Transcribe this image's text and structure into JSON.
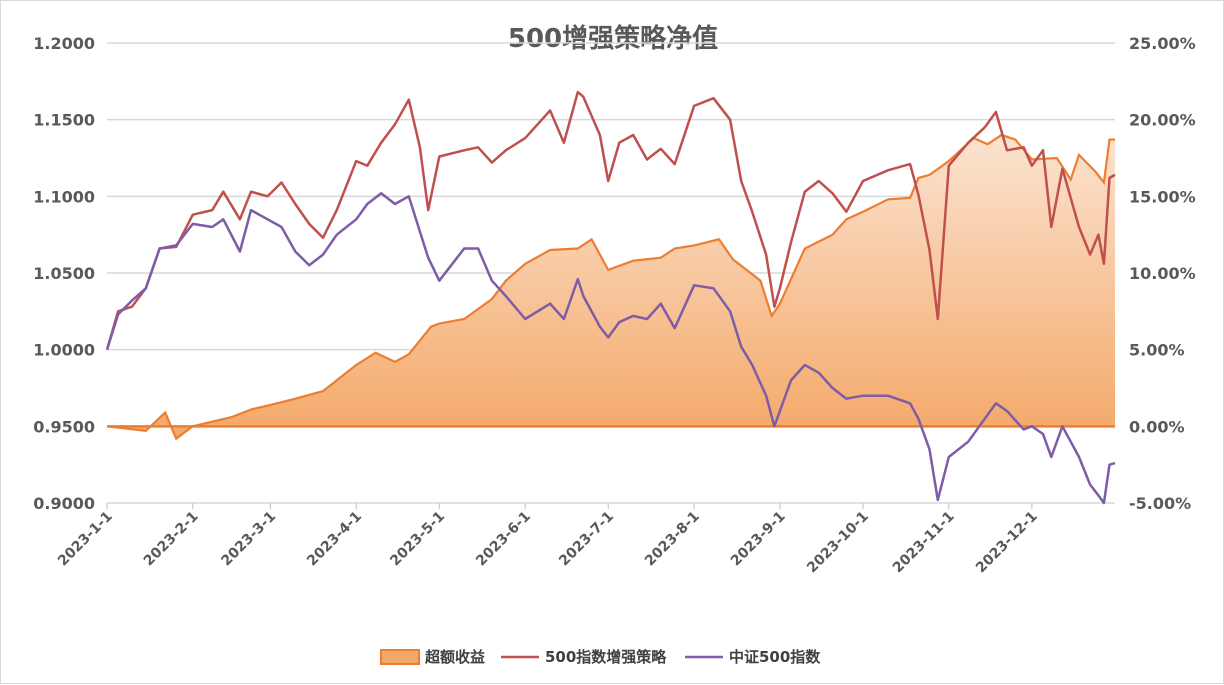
{
  "chart_data": {
    "type": "line",
    "title": "500增强策略净值",
    "x_labels": [
      "2023-1-1",
      "2023-2-1",
      "2023-3-1",
      "2023-4-1",
      "2023-5-1",
      "2023-6-1",
      "2023-7-1",
      "2023-8-1",
      "2023-9-1",
      "2023-10-1",
      "2023-11-1",
      "2023-12-1"
    ],
    "left_axis": {
      "ticks": [
        "1.2000",
        "1.1500",
        "1.1000",
        "1.0500",
        "1.0000",
        "0.9500",
        "0.9000"
      ],
      "ylim": [
        0.9,
        1.2
      ]
    },
    "right_axis": {
      "ticks": [
        "25.00%",
        "20.00%",
        "15.00%",
        "10.00%",
        "5.00%",
        "0.00%",
        "-5.00%"
      ],
      "ylim": [
        -5,
        25
      ]
    },
    "grid": true,
    "legend_position": "bottom",
    "series": [
      {
        "name": "超额收益",
        "type": "area",
        "axis": "right",
        "color": "#ED7D31",
        "fill_top": "#FBE3D0",
        "fill_bottom": "#F4A868",
        "points": [
          [
            "2023-1-1",
            0.0
          ],
          [
            "2023-1-15",
            -0.3
          ],
          [
            "2023-1-22",
            0.9
          ],
          [
            "2023-1-26",
            -0.8
          ],
          [
            "2023-2-1",
            0.0
          ],
          [
            "2023-2-8",
            0.3
          ],
          [
            "2023-2-15",
            0.6
          ],
          [
            "2023-2-22",
            1.1
          ],
          [
            "2023-3-1",
            1.4
          ],
          [
            "2023-3-10",
            1.8
          ],
          [
            "2023-3-20",
            2.3
          ],
          [
            "2023-3-25",
            3.0
          ],
          [
            "2023-4-1",
            4.0
          ],
          [
            "2023-4-8",
            4.8
          ],
          [
            "2023-4-15",
            4.2
          ],
          [
            "2023-4-20",
            4.7
          ],
          [
            "2023-4-28",
            6.5
          ],
          [
            "2023-5-1",
            6.7
          ],
          [
            "2023-5-10",
            7.0
          ],
          [
            "2023-5-20",
            8.3
          ],
          [
            "2023-5-25",
            9.5
          ],
          [
            "2023-6-1",
            10.6
          ],
          [
            "2023-6-10",
            11.5
          ],
          [
            "2023-6-20",
            11.6
          ],
          [
            "2023-6-25",
            12.2
          ],
          [
            "2023-7-1",
            10.2
          ],
          [
            "2023-7-10",
            10.8
          ],
          [
            "2023-7-20",
            11.0
          ],
          [
            "2023-7-25",
            11.6
          ],
          [
            "2023-8-1",
            11.8
          ],
          [
            "2023-8-10",
            12.2
          ],
          [
            "2023-8-15",
            10.9
          ],
          [
            "2023-8-25",
            9.5
          ],
          [
            "2023-8-29",
            7.2
          ],
          [
            "2023-9-1",
            8.0
          ],
          [
            "2023-9-10",
            11.6
          ],
          [
            "2023-9-20",
            12.5
          ],
          [
            "2023-9-25",
            13.5
          ],
          [
            "2023-10-1",
            14.0
          ],
          [
            "2023-10-10",
            14.8
          ],
          [
            "2023-10-18",
            14.9
          ],
          [
            "2023-10-21",
            16.2
          ],
          [
            "2023-10-25",
            16.4
          ],
          [
            "2023-11-1",
            17.3
          ],
          [
            "2023-11-10",
            18.8
          ],
          [
            "2023-11-15",
            18.4
          ],
          [
            "2023-11-20",
            19.0
          ],
          [
            "2023-11-25",
            18.7
          ],
          [
            "2023-12-1",
            17.4
          ],
          [
            "2023-12-10",
            17.5
          ],
          [
            "2023-12-15",
            16.1
          ],
          [
            "2023-12-18",
            17.7
          ],
          [
            "2023-12-24",
            16.6
          ],
          [
            "2023-12-27",
            15.9
          ],
          [
            "2023-12-29",
            18.7
          ],
          [
            "2023-12-31",
            18.7
          ]
        ]
      },
      {
        "name": "500指数增强策略",
        "type": "line",
        "axis": "left",
        "color": "#C0504D",
        "points": [
          [
            "2023-1-1",
            1.0
          ],
          [
            "2023-1-5",
            1.025
          ],
          [
            "2023-1-10",
            1.028
          ],
          [
            "2023-1-15",
            1.04
          ],
          [
            "2023-1-20",
            1.066
          ],
          [
            "2023-1-26",
            1.067
          ],
          [
            "2023-2-1",
            1.088
          ],
          [
            "2023-2-8",
            1.091
          ],
          [
            "2023-2-12",
            1.103
          ],
          [
            "2023-2-18",
            1.085
          ],
          [
            "2023-2-22",
            1.103
          ],
          [
            "2023-2-28",
            1.1
          ],
          [
            "2023-3-5",
            1.109
          ],
          [
            "2023-3-10",
            1.095
          ],
          [
            "2023-3-15",
            1.082
          ],
          [
            "2023-3-20",
            1.073
          ],
          [
            "2023-3-25",
            1.091
          ],
          [
            "2023-4-1",
            1.123
          ],
          [
            "2023-4-5",
            1.12
          ],
          [
            "2023-4-10",
            1.135
          ],
          [
            "2023-4-15",
            1.147
          ],
          [
            "2023-4-20",
            1.163
          ],
          [
            "2023-4-24",
            1.132
          ],
          [
            "2023-4-27",
            1.091
          ],
          [
            "2023-5-1",
            1.126
          ],
          [
            "2023-5-10",
            1.13
          ],
          [
            "2023-5-15",
            1.132
          ],
          [
            "2023-5-20",
            1.122
          ],
          [
            "2023-5-25",
            1.13
          ],
          [
            "2023-6-1",
            1.138
          ],
          [
            "2023-6-10",
            1.156
          ],
          [
            "2023-6-15",
            1.135
          ],
          [
            "2023-6-20",
            1.168
          ],
          [
            "2023-6-22",
            1.165
          ],
          [
            "2023-6-28",
            1.14
          ],
          [
            "2023-7-1",
            1.11
          ],
          [
            "2023-7-5",
            1.135
          ],
          [
            "2023-7-10",
            1.14
          ],
          [
            "2023-7-15",
            1.124
          ],
          [
            "2023-7-20",
            1.131
          ],
          [
            "2023-7-25",
            1.121
          ],
          [
            "2023-8-1",
            1.159
          ],
          [
            "2023-8-8",
            1.164
          ],
          [
            "2023-8-14",
            1.15
          ],
          [
            "2023-8-18",
            1.11
          ],
          [
            "2023-8-22",
            1.09
          ],
          [
            "2023-8-27",
            1.062
          ],
          [
            "2023-8-30",
            1.028
          ],
          [
            "2023-9-1",
            1.04
          ],
          [
            "2023-9-5",
            1.07
          ],
          [
            "2023-9-10",
            1.103
          ],
          [
            "2023-9-15",
            1.11
          ],
          [
            "2023-9-20",
            1.102
          ],
          [
            "2023-9-25",
            1.09
          ],
          [
            "2023-10-1",
            1.11
          ],
          [
            "2023-10-10",
            1.117
          ],
          [
            "2023-10-18",
            1.121
          ],
          [
            "2023-10-21",
            1.101
          ],
          [
            "2023-10-25",
            1.065
          ],
          [
            "2023-10-28",
            1.02
          ],
          [
            "2023-11-1",
            1.12
          ],
          [
            "2023-11-8",
            1.135
          ],
          [
            "2023-11-14",
            1.145
          ],
          [
            "2023-11-18",
            1.155
          ],
          [
            "2023-11-22",
            1.13
          ],
          [
            "2023-11-28",
            1.132
          ],
          [
            "2023-12-1",
            1.12
          ],
          [
            "2023-12-5",
            1.13
          ],
          [
            "2023-12-8",
            1.08
          ],
          [
            "2023-12-12",
            1.118
          ],
          [
            "2023-12-18",
            1.08
          ],
          [
            "2023-12-22",
            1.062
          ],
          [
            "2023-12-25",
            1.075
          ],
          [
            "2023-12-27",
            1.056
          ],
          [
            "2023-12-29",
            1.112
          ],
          [
            "2023-12-31",
            1.114
          ]
        ]
      },
      {
        "name": "中证500指数",
        "type": "line",
        "axis": "left",
        "color": "#7E5CA6",
        "points": [
          [
            "2023-1-1",
            1.0
          ],
          [
            "2023-1-5",
            1.023
          ],
          [
            "2023-1-10",
            1.032
          ],
          [
            "2023-1-15",
            1.04
          ],
          [
            "2023-1-20",
            1.066
          ],
          [
            "2023-1-26",
            1.068
          ],
          [
            "2023-2-1",
            1.082
          ],
          [
            "2023-2-8",
            1.08
          ],
          [
            "2023-2-12",
            1.085
          ],
          [
            "2023-2-18",
            1.064
          ],
          [
            "2023-2-22",
            1.091
          ],
          [
            "2023-2-28",
            1.085
          ],
          [
            "2023-3-5",
            1.08
          ],
          [
            "2023-3-10",
            1.064
          ],
          [
            "2023-3-15",
            1.055
          ],
          [
            "2023-3-20",
            1.062
          ],
          [
            "2023-3-25",
            1.075
          ],
          [
            "2023-4-1",
            1.085
          ],
          [
            "2023-4-5",
            1.095
          ],
          [
            "2023-4-10",
            1.102
          ],
          [
            "2023-4-15",
            1.095
          ],
          [
            "2023-4-20",
            1.1
          ],
          [
            "2023-4-24",
            1.077
          ],
          [
            "2023-4-27",
            1.06
          ],
          [
            "2023-5-1",
            1.045
          ],
          [
            "2023-5-10",
            1.066
          ],
          [
            "2023-5-15",
            1.066
          ],
          [
            "2023-5-20",
            1.045
          ],
          [
            "2023-5-25",
            1.035
          ],
          [
            "2023-6-1",
            1.02
          ],
          [
            "2023-6-10",
            1.03
          ],
          [
            "2023-6-15",
            1.02
          ],
          [
            "2023-6-20",
            1.046
          ],
          [
            "2023-6-22",
            1.035
          ],
          [
            "2023-6-28",
            1.015
          ],
          [
            "2023-7-1",
            1.008
          ],
          [
            "2023-7-5",
            1.018
          ],
          [
            "2023-7-10",
            1.022
          ],
          [
            "2023-7-15",
            1.02
          ],
          [
            "2023-7-20",
            1.03
          ],
          [
            "2023-7-25",
            1.014
          ],
          [
            "2023-8-1",
            1.042
          ],
          [
            "2023-8-8",
            1.04
          ],
          [
            "2023-8-14",
            1.025
          ],
          [
            "2023-8-18",
            1.002
          ],
          [
            "2023-8-22",
            0.99
          ],
          [
            "2023-8-27",
            0.97
          ],
          [
            "2023-8-30",
            0.95
          ],
          [
            "2023-9-1",
            0.96
          ],
          [
            "2023-9-5",
            0.98
          ],
          [
            "2023-9-10",
            0.99
          ],
          [
            "2023-9-15",
            0.985
          ],
          [
            "2023-9-20",
            0.975
          ],
          [
            "2023-9-25",
            0.968
          ],
          [
            "2023-10-1",
            0.97
          ],
          [
            "2023-10-10",
            0.97
          ],
          [
            "2023-10-18",
            0.965
          ],
          [
            "2023-10-21",
            0.955
          ],
          [
            "2023-10-25",
            0.935
          ],
          [
            "2023-10-28",
            0.902
          ],
          [
            "2023-11-1",
            0.93
          ],
          [
            "2023-11-8",
            0.94
          ],
          [
            "2023-11-14",
            0.955
          ],
          [
            "2023-11-18",
            0.965
          ],
          [
            "2023-11-22",
            0.96
          ],
          [
            "2023-11-28",
            0.948
          ],
          [
            "2023-12-1",
            0.95
          ],
          [
            "2023-12-5",
            0.945
          ],
          [
            "2023-12-8",
            0.93
          ],
          [
            "2023-12-12",
            0.95
          ],
          [
            "2023-12-18",
            0.93
          ],
          [
            "2023-12-22",
            0.912
          ],
          [
            "2023-12-25",
            0.905
          ],
          [
            "2023-12-27",
            0.9
          ],
          [
            "2023-12-29",
            0.925
          ],
          [
            "2023-12-31",
            0.926
          ]
        ]
      }
    ]
  }
}
